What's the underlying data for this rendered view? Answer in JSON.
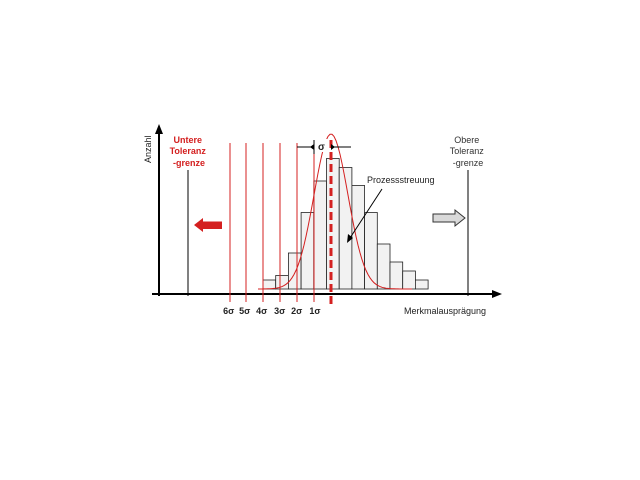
{
  "axes": {
    "y_label": "Anzahl",
    "x_label": "Merkmalausprägung"
  },
  "tolerance": {
    "lower": [
      "Untere",
      "Toleranz",
      "-grenze"
    ],
    "upper": [
      "Obere",
      "Toleranz",
      "-grenze"
    ]
  },
  "sigma_label": "σ",
  "sigma_ticks": [
    "6σ",
    "5σ",
    "4σ",
    "3σ",
    "2σ",
    "1σ"
  ],
  "annotation": "Prozessstreuung",
  "colors": {
    "axis": "#000000",
    "red": "#d42020",
    "bar_fill": "#f2f2f2",
    "bar_stroke": "#222222",
    "upper_arrow_fill": "#d9d9d9"
  },
  "histogram": {
    "counts": [
      1,
      1.5,
      4,
      8.5,
      12,
      14.5,
      13.5,
      11.5,
      8.5,
      5,
      3,
      2,
      1
    ]
  }
}
